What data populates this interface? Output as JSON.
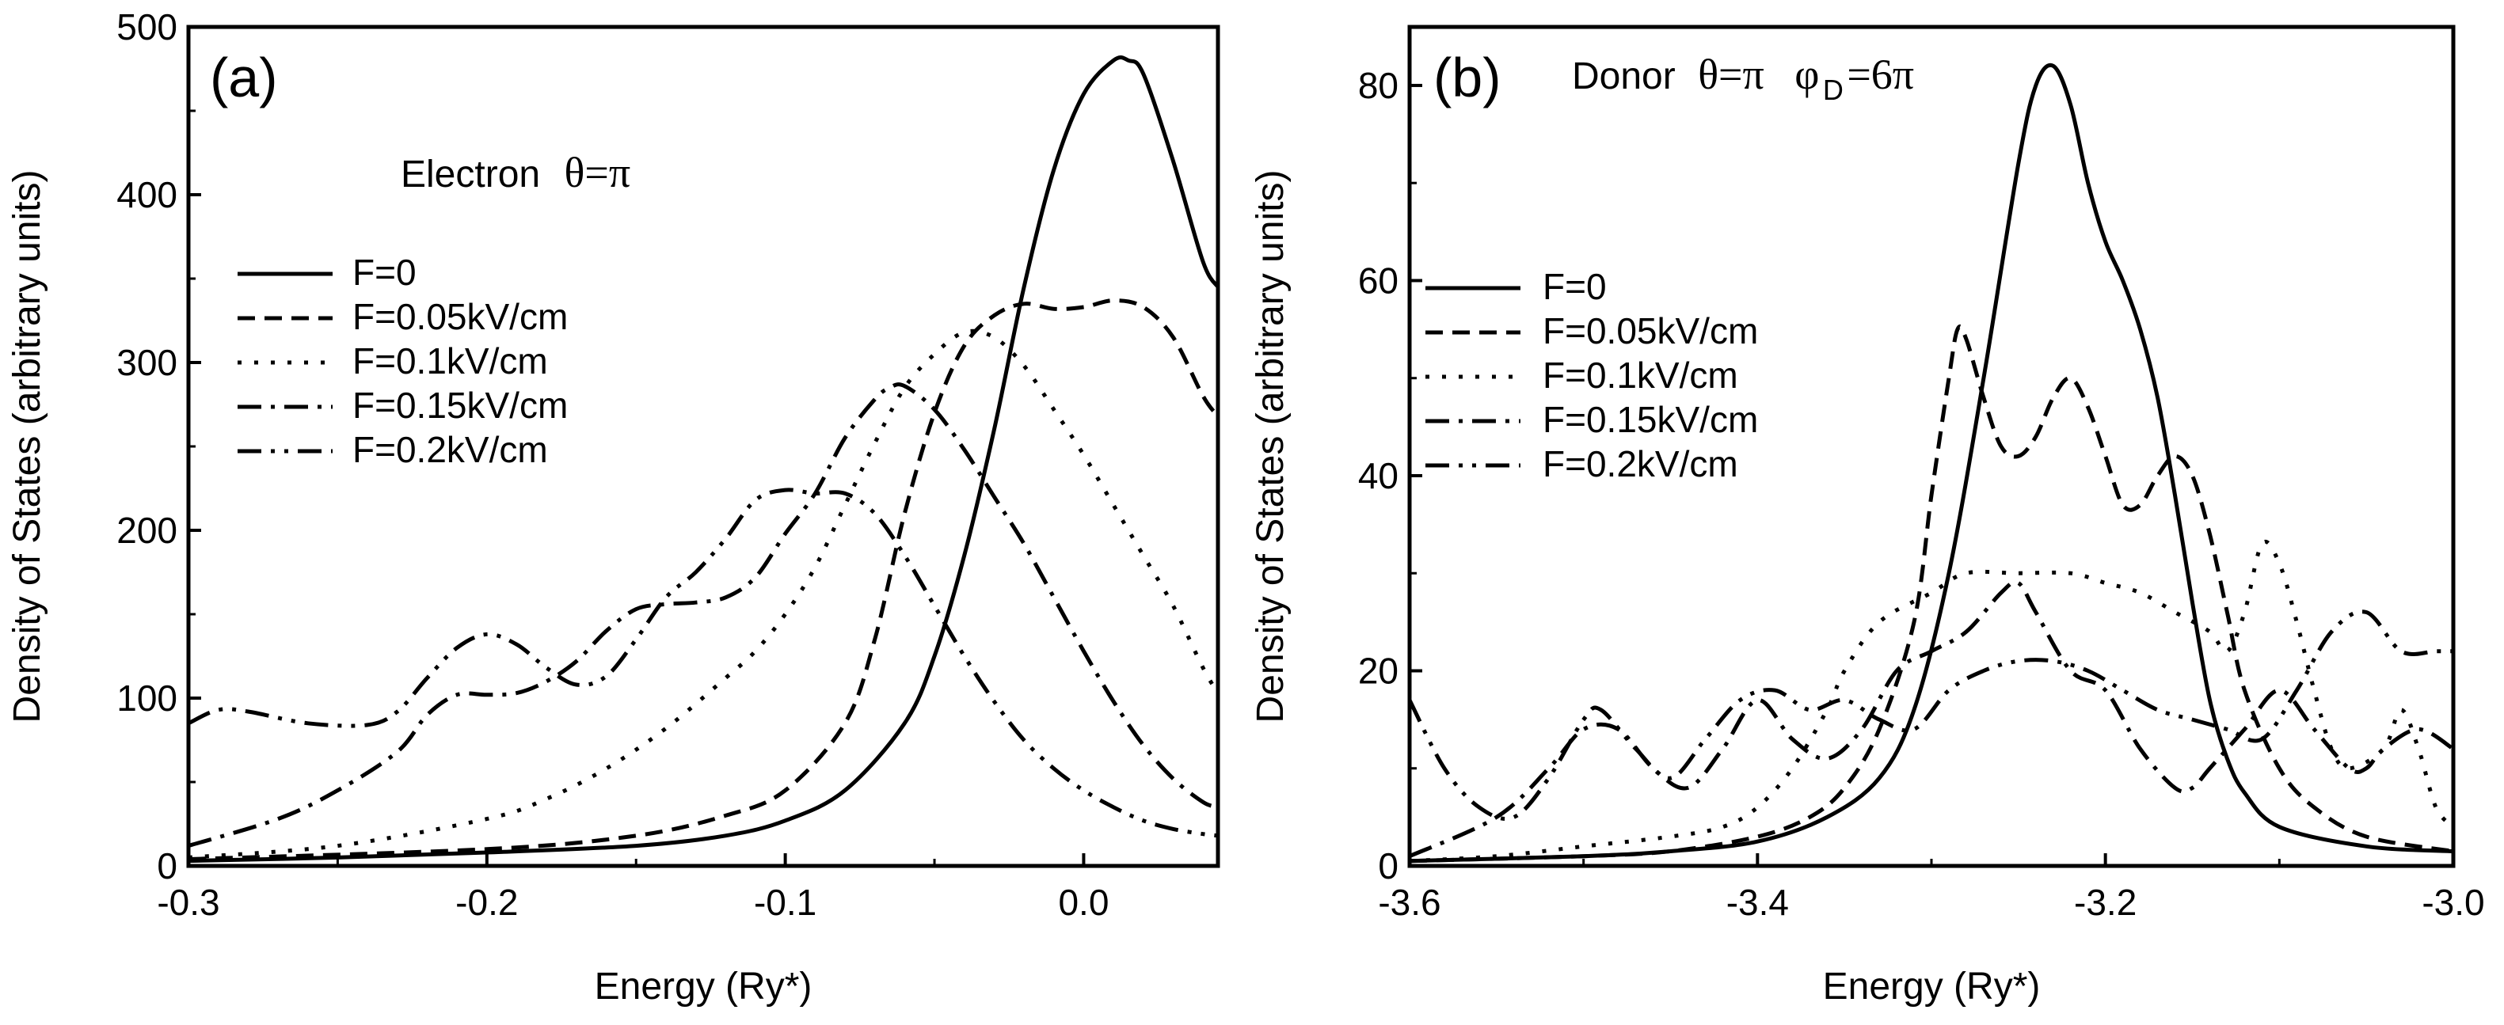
{
  "chart_data": [
    {
      "type": "line",
      "panel": "(a)",
      "annotation": {
        "prefix": "Electron",
        "symbol": "θ=π"
      },
      "xlabel": "Energy (Ry*)",
      "ylabel": "Density of States (arbitrary units)",
      "xlim": [
        -0.3,
        0.045
      ],
      "ylim": [
        0,
        500
      ],
      "xticks": [
        -0.3,
        -0.2,
        -0.1,
        0.0
      ],
      "xtick_labels": [
        "-0.3",
        "-0.2",
        "-0.1",
        "0.0"
      ],
      "yticks": [
        0,
        100,
        200,
        300,
        400,
        500
      ],
      "ytick_labels": [
        "0",
        "100",
        "200",
        "300",
        "400",
        "500"
      ],
      "legend_position": "middle-left",
      "series": [
        {
          "name": "F=0",
          "style": "solid",
          "x": [
            -0.3,
            -0.25,
            -0.2,
            -0.15,
            -0.12,
            -0.1,
            -0.08,
            -0.06,
            -0.05,
            -0.04,
            -0.03,
            -0.02,
            -0.01,
            0.0,
            0.01,
            0.015,
            0.02,
            0.03,
            0.04,
            0.045
          ],
          "y": [
            3,
            5,
            8,
            12,
            18,
            27,
            45,
            85,
            125,
            185,
            260,
            345,
            415,
            460,
            480,
            480,
            472,
            420,
            360,
            345
          ]
        },
        {
          "name": "F=0.05kV/cm",
          "style": "dash",
          "x": [
            -0.3,
            -0.2,
            -0.15,
            -0.12,
            -0.1,
            -0.08,
            -0.07,
            -0.06,
            -0.05,
            -0.04,
            -0.03,
            -0.02,
            -0.01,
            0.0,
            0.01,
            0.02,
            0.03,
            0.04,
            0.045
          ],
          "y": [
            4,
            10,
            18,
            30,
            45,
            85,
            135,
            210,
            270,
            310,
            328,
            335,
            332,
            333,
            337,
            333,
            315,
            280,
            268
          ]
        },
        {
          "name": "F=0.1kV/cm",
          "style": "dot",
          "x": [
            -0.3,
            -0.25,
            -0.2,
            -0.18,
            -0.16,
            -0.14,
            -0.12,
            -0.11,
            -0.1,
            -0.09,
            -0.08,
            -0.07,
            -0.06,
            -0.05,
            -0.04,
            -0.03,
            -0.02,
            -0.01,
            0.0,
            0.01,
            0.02,
            0.03,
            0.04,
            0.045
          ],
          "y": [
            5,
            12,
            28,
            40,
            58,
            82,
            112,
            128,
            150,
            178,
            215,
            252,
            285,
            305,
            318,
            315,
            298,
            272,
            245,
            215,
            185,
            155,
            118,
            103
          ]
        },
        {
          "name": "F=0.15kV/cm",
          "style": "dashdot",
          "x": [
            -0.3,
            -0.27,
            -0.25,
            -0.23,
            -0.22,
            -0.21,
            -0.2,
            -0.19,
            -0.18,
            -0.17,
            -0.16,
            -0.15,
            -0.14,
            -0.13,
            -0.12,
            -0.11,
            -0.1,
            -0.09,
            -0.08,
            -0.07,
            -0.065,
            -0.06,
            -0.05,
            -0.04,
            -0.03,
            -0.02,
            -0.01,
            0.0,
            0.01,
            0.02,
            0.03,
            0.04,
            0.045
          ],
          "y": [
            12,
            28,
            45,
            68,
            90,
            102,
            102,
            103,
            110,
            122,
            140,
            153,
            156,
            157,
            160,
            172,
            198,
            222,
            255,
            278,
            285,
            286,
            272,
            248,
            220,
            192,
            160,
            128,
            98,
            72,
            52,
            38,
            35
          ]
        },
        {
          "name": "F=0.2kV/cm",
          "style": "dashdotdot",
          "x": [
            -0.3,
            -0.29,
            -0.28,
            -0.26,
            -0.24,
            -0.23,
            -0.22,
            -0.21,
            -0.2,
            -0.19,
            -0.18,
            -0.17,
            -0.16,
            -0.15,
            -0.14,
            -0.13,
            -0.12,
            -0.11,
            -0.1,
            -0.09,
            -0.08,
            -0.07,
            -0.06,
            -0.05,
            -0.04,
            -0.03,
            -0.02,
            -0.01,
            0.0,
            0.01,
            0.02,
            0.03,
            0.04,
            0.045
          ],
          "y": [
            85,
            93,
            92,
            85,
            84,
            92,
            112,
            130,
            138,
            132,
            118,
            108,
            113,
            135,
            160,
            175,
            195,
            218,
            224,
            222,
            222,
            210,
            185,
            155,
            125,
            98,
            75,
            58,
            45,
            35,
            27,
            22,
            19,
            18
          ]
        }
      ]
    },
    {
      "type": "line",
      "panel": "(b)",
      "annotation": {
        "prefix": "Donor",
        "symbol": "θ=π",
        "symbol2": "φ",
        "sub": "D",
        "symbol2_tail": "=6π"
      },
      "xlabel": "Energy (Ry*)",
      "ylabel": "Density of States (arbitrary units)",
      "xlim": [
        -3.6,
        -3.0
      ],
      "ylim": [
        0,
        86
      ],
      "xticks": [
        -3.6,
        -3.4,
        -3.2,
        -3.0
      ],
      "xtick_labels": [
        "-3.6",
        "-3.4",
        "-3.2",
        "-3.0"
      ],
      "yticks": [
        0,
        20,
        40,
        60,
        80
      ],
      "ytick_labels": [
        "0",
        "20",
        "40",
        "60",
        "80"
      ],
      "legend_position": "middle-left",
      "series": [
        {
          "name": "F=0",
          "style": "solid",
          "x": [
            -3.6,
            -3.5,
            -3.45,
            -3.4,
            -3.36,
            -3.33,
            -3.31,
            -3.29,
            -3.27,
            -3.25,
            -3.24,
            -3.23,
            -3.22,
            -3.21,
            -3.2,
            -3.19,
            -3.18,
            -3.17,
            -3.16,
            -3.15,
            -3.14,
            -3.13,
            -3.12,
            -3.1,
            -3.05,
            -3.0
          ],
          "y": [
            0.5,
            1,
            1.5,
            2.5,
            5,
            9,
            16,
            30,
            50,
            72,
            80,
            82,
            78,
            70,
            64,
            60,
            55,
            48,
            38,
            27,
            17,
            11,
            7.5,
            4,
            2,
            1.5
          ]
        },
        {
          "name": "F=0.05kV/cm",
          "style": "dash",
          "x": [
            -3.6,
            -3.5,
            -3.45,
            -3.4,
            -3.37,
            -3.35,
            -3.33,
            -3.31,
            -3.3,
            -3.29,
            -3.285,
            -3.28,
            -3.27,
            -3.26,
            -3.25,
            -3.24,
            -3.23,
            -3.22,
            -3.21,
            -3.2,
            -3.19,
            -3.18,
            -3.17,
            -3.16,
            -3.15,
            -3.14,
            -3.13,
            -3.12,
            -3.1,
            -3.08,
            -3.05,
            -3.0
          ],
          "y": [
            0.5,
            1,
            1.5,
            3,
            5,
            8,
            14,
            25,
            38,
            50,
            55,
            54,
            48,
            43,
            42,
            44,
            48,
            50,
            47,
            42,
            37,
            37,
            40,
            42,
            40,
            34,
            26,
            18,
            10,
            6,
            3,
            1.5
          ]
        },
        {
          "name": "F=0.1kV/cm",
          "style": "dot",
          "x": [
            -3.6,
            -3.55,
            -3.5,
            -3.45,
            -3.42,
            -3.4,
            -3.38,
            -3.36,
            -3.35,
            -3.33,
            -3.3,
            -3.28,
            -3.25,
            -3.22,
            -3.2,
            -3.18,
            -3.16,
            -3.14,
            -3.13,
            -3.12,
            -3.11,
            -3.1,
            -3.09,
            -3.08,
            -3.07,
            -3.06,
            -3.04,
            -3.03,
            -3.02,
            -3.01,
            -3.0
          ],
          "y": [
            0.5,
            1,
            2,
            3,
            4,
            6,
            10,
            16,
            20,
            25,
            28,
            30,
            30,
            30,
            29,
            28,
            26,
            24,
            22,
            26,
            33,
            31,
            25,
            18,
            12,
            10,
            12,
            16,
            12,
            6,
            4
          ]
        },
        {
          "name": "F=0.15kV/cm",
          "style": "dashdot",
          "x": [
            -3.6,
            -3.55,
            -3.52,
            -3.5,
            -3.48,
            -3.46,
            -3.44,
            -3.42,
            -3.4,
            -3.38,
            -3.36,
            -3.34,
            -3.32,
            -3.3,
            -3.28,
            -3.26,
            -3.25,
            -3.24,
            -3.22,
            -3.2,
            -3.18,
            -3.16,
            -3.15,
            -3.14,
            -3.12,
            -3.1,
            -3.08,
            -3.06,
            -3.05,
            -3.04,
            -3.02,
            -3.0
          ],
          "y": [
            1,
            5,
            10,
            14,
            14,
            10,
            8,
            12,
            17,
            13,
            11,
            14,
            20,
            22,
            24,
            28,
            29,
            26,
            20,
            18,
            12,
            8,
            8,
            10,
            14,
            18,
            14,
            10,
            10,
            12,
            14,
            12
          ]
        },
        {
          "name": "F=0.2kV/cm",
          "style": "dashdotdot",
          "x": [
            -3.6,
            -3.58,
            -3.56,
            -3.54,
            -3.52,
            -3.5,
            -3.49,
            -3.47,
            -3.45,
            -3.43,
            -3.41,
            -3.39,
            -3.37,
            -3.35,
            -3.33,
            -3.31,
            -3.29,
            -3.27,
            -3.25,
            -3.23,
            -3.21,
            -3.19,
            -3.17,
            -3.15,
            -3.13,
            -3.11,
            -3.09,
            -3.07,
            -3.05,
            -3.03,
            -3.01,
            -3.0
          ],
          "y": [
            17,
            10,
            6,
            5,
            9,
            15,
            16,
            12,
            9,
            13,
            17,
            18,
            16,
            17,
            15,
            14,
            18,
            20,
            21,
            21,
            20,
            18,
            16,
            15,
            14,
            13,
            18,
            24,
            26,
            22,
            22,
            22
          ]
        }
      ]
    }
  ]
}
